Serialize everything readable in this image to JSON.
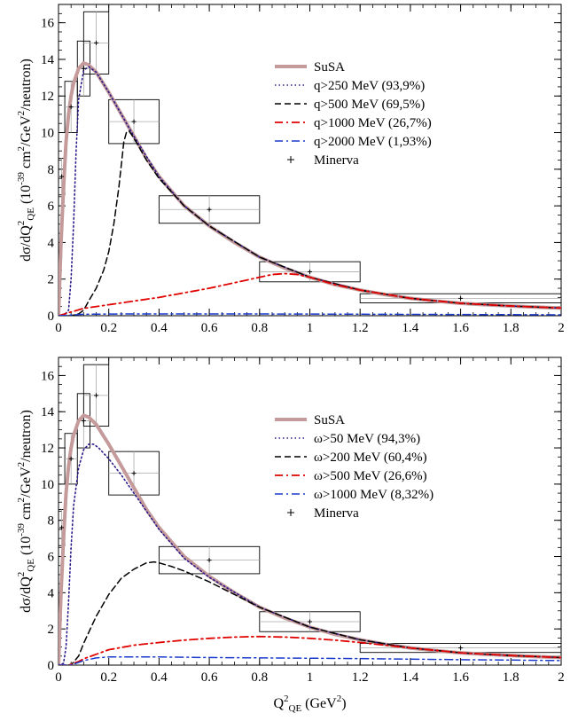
{
  "chart_data": [
    {
      "type": "line",
      "xlabel": "",
      "ylabel": {
        "main": "dσ/dQ",
        "sup2": "2",
        "sub": "QE",
        "paren": " (10",
        "exp": "-39",
        "cm": " cm",
        "cmexp": "2",
        "gev": "/GeV",
        "gevexp": "2",
        "tail": "/neutron)"
      },
      "xlim": [
        0,
        2
      ],
      "ylim": [
        0,
        17
      ],
      "xticks": [
        "0",
        "0.2",
        "0.4",
        "0.6",
        "0.8",
        "1",
        "1.2",
        "1.4",
        "1.6",
        "1.8",
        "2"
      ],
      "yticks": [
        "0",
        "2",
        "4",
        "6",
        "8",
        "10",
        "12",
        "14",
        "16"
      ],
      "legend_position": "top-right",
      "series": [
        {
          "name": "SuSA",
          "style": "thick",
          "color": "#c49a9a",
          "x": [
            0,
            0.01,
            0.02,
            0.03,
            0.04,
            0.05,
            0.06,
            0.08,
            0.1,
            0.12,
            0.15,
            0.2,
            0.25,
            0.3,
            0.35,
            0.4,
            0.5,
            0.6,
            0.7,
            0.8,
            0.9,
            1.0,
            1.1,
            1.2,
            1.3,
            1.4,
            1.5,
            1.6,
            1.7,
            1.8,
            1.9,
            2.0
          ],
          "y": [
            0,
            4.0,
            7.0,
            9.5,
            11.0,
            12.0,
            12.7,
            13.5,
            13.8,
            13.7,
            13.3,
            12.2,
            11.0,
            9.8,
            8.6,
            7.6,
            6.0,
            4.9,
            4.0,
            3.2,
            2.6,
            2.1,
            1.7,
            1.4,
            1.15,
            0.95,
            0.8,
            0.68,
            0.6,
            0.53,
            0.47,
            0.42
          ]
        },
        {
          "name": "q>250 MeV (93,9%)",
          "style": "dotted",
          "color": "#2a1a8a",
          "x": [
            0,
            0.02,
            0.04,
            0.05,
            0.06,
            0.07,
            0.08,
            0.1,
            0.12,
            0.15,
            0.2,
            0.25,
            0.3,
            0.4,
            0.5,
            0.6,
            0.8,
            1.0,
            1.2,
            1.4,
            1.6,
            1.8,
            2.0
          ],
          "y": [
            0,
            0,
            0.3,
            2.0,
            5.0,
            9.0,
            11.8,
            13.4,
            13.6,
            13.3,
            12.2,
            11.0,
            9.8,
            7.6,
            6.0,
            4.9,
            3.2,
            2.1,
            1.4,
            0.95,
            0.68,
            0.53,
            0.42
          ]
        },
        {
          "name": "q>500 MeV (69,5%)",
          "style": "dashed",
          "color": "#000000",
          "x": [
            0,
            0.05,
            0.08,
            0.1,
            0.12,
            0.15,
            0.18,
            0.2,
            0.22,
            0.24,
            0.26,
            0.27,
            0.28,
            0.3,
            0.35,
            0.4,
            0.5,
            0.6,
            0.8,
            1.0,
            1.2,
            1.4,
            1.6,
            1.8,
            2.0
          ],
          "y": [
            0,
            0,
            0.1,
            0.3,
            0.8,
            1.5,
            2.5,
            3.5,
            5.0,
            7.0,
            9.5,
            10.0,
            10.1,
            9.7,
            8.5,
            7.5,
            6.0,
            4.9,
            3.2,
            2.1,
            1.4,
            0.95,
            0.68,
            0.53,
            0.42
          ]
        },
        {
          "name": "q>1000 MeV (26,7%)",
          "style": "dashdot",
          "color": "#e00000",
          "x": [
            0,
            0.05,
            0.1,
            0.2,
            0.3,
            0.4,
            0.5,
            0.6,
            0.7,
            0.8,
            0.85,
            0.9,
            0.95,
            1.0,
            1.1,
            1.2,
            1.4,
            1.6,
            1.8,
            2.0
          ],
          "y": [
            0,
            0.2,
            0.4,
            0.6,
            0.8,
            1.0,
            1.25,
            1.5,
            1.8,
            2.1,
            2.25,
            2.3,
            2.25,
            2.1,
            1.7,
            1.4,
            0.95,
            0.68,
            0.53,
            0.42
          ]
        },
        {
          "name": "q>2000 MeV (1,93%)",
          "style": "dashdotblue",
          "color": "#1a3acc",
          "x": [
            0,
            0.1,
            0.3,
            0.6,
            1.0,
            1.5,
            2.0
          ],
          "y": [
            0,
            0.08,
            0.1,
            0.1,
            0.09,
            0.07,
            0.05
          ]
        },
        {
          "name": "Minerva",
          "style": "points",
          "color": "#000000",
          "points": [
            {
              "x": 0.0125,
              "y": 7.6,
              "xerr": 0.0125,
              "yerr": 1.0,
              "stat": 0.3
            },
            {
              "x": 0.05,
              "y": 11.4,
              "xerr": 0.025,
              "yerr": 1.4,
              "stat": 0.3
            },
            {
              "x": 0.1,
              "y": 13.5,
              "xerr": 0.025,
              "yerr": 1.5,
              "stat": 0.4
            },
            {
              "x": 0.15,
              "y": 14.9,
              "xerr": 0.05,
              "yerr": 1.7,
              "stat": 0.3
            },
            {
              "x": 0.3,
              "y": 10.6,
              "xerr": 0.1,
              "yerr": 1.2,
              "stat": 0.3
            },
            {
              "x": 0.6,
              "y": 5.8,
              "xerr": 0.2,
              "yerr": 0.75,
              "stat": 0.2
            },
            {
              "x": 1.0,
              "y": 2.4,
              "xerr": 0.2,
              "yerr": 0.55,
              "stat": 0.15
            },
            {
              "x": 1.6,
              "y": 0.95,
              "xerr": 0.4,
              "yerr": 0.25,
              "stat": 0.1
            }
          ]
        }
      ]
    },
    {
      "type": "line",
      "xlabel": {
        "main": "Q",
        "sup": "2",
        "sub": "QE",
        "tail": " (GeV",
        "tailexp": "2",
        "close": ")"
      },
      "ylabel": {
        "main": "dσ/dQ",
        "sup2": "2",
        "sub": "QE",
        "paren": " (10",
        "exp": "-39",
        "cm": " cm",
        "cmexp": "2",
        "gev": "/GeV",
        "gevexp": "2",
        "tail": "/neutron)"
      },
      "xlim": [
        0,
        2
      ],
      "ylim": [
        0,
        17
      ],
      "xticks": [
        "0",
        "0.2",
        "0.4",
        "0.6",
        "0.8",
        "1",
        "1.2",
        "1.4",
        "1.6",
        "1.8",
        "2"
      ],
      "yticks": [
        "0",
        "2",
        "4",
        "6",
        "8",
        "10",
        "12",
        "14",
        "16"
      ],
      "legend_position": "top-right",
      "series": [
        {
          "name": "SuSA",
          "style": "thick",
          "color": "#c49a9a",
          "x": [
            0,
            0.01,
            0.02,
            0.03,
            0.04,
            0.05,
            0.06,
            0.08,
            0.1,
            0.12,
            0.15,
            0.2,
            0.25,
            0.3,
            0.35,
            0.4,
            0.5,
            0.6,
            0.7,
            0.8,
            0.9,
            1.0,
            1.1,
            1.2,
            1.3,
            1.4,
            1.5,
            1.6,
            1.7,
            1.8,
            1.9,
            2.0
          ],
          "y": [
            0,
            4.0,
            7.0,
            9.5,
            11.0,
            12.0,
            12.7,
            13.5,
            13.8,
            13.7,
            13.3,
            12.2,
            11.0,
            9.8,
            8.6,
            7.6,
            6.0,
            4.9,
            4.0,
            3.2,
            2.6,
            2.1,
            1.7,
            1.4,
            1.15,
            0.95,
            0.8,
            0.68,
            0.6,
            0.53,
            0.47,
            0.42
          ]
        },
        {
          "name": "ω>50 MeV (94,3%)",
          "style": "dotted",
          "color": "#2a1a8a",
          "x": [
            0,
            0.02,
            0.03,
            0.04,
            0.05,
            0.06,
            0.08,
            0.1,
            0.12,
            0.14,
            0.16,
            0.2,
            0.25,
            0.3,
            0.4,
            0.5,
            0.6,
            0.8,
            1.0,
            1.2,
            1.4,
            1.6,
            1.8,
            2.0
          ],
          "y": [
            0,
            0.1,
            1.0,
            3.5,
            6.5,
            8.8,
            10.9,
            11.9,
            12.2,
            12.2,
            12.0,
            11.4,
            10.5,
            9.5,
            7.5,
            5.9,
            4.85,
            3.2,
            2.1,
            1.4,
            0.95,
            0.68,
            0.53,
            0.42
          ]
        },
        {
          "name": "ω>200 MeV (60,4%)",
          "style": "dashed",
          "color": "#000000",
          "x": [
            0,
            0.05,
            0.08,
            0.1,
            0.15,
            0.2,
            0.25,
            0.3,
            0.35,
            0.38,
            0.4,
            0.45,
            0.5,
            0.6,
            0.7,
            0.8,
            1.0,
            1.2,
            1.4,
            1.6,
            1.8,
            2.0
          ],
          "y": [
            0,
            0,
            0.5,
            1.2,
            2.7,
            3.9,
            4.8,
            5.3,
            5.65,
            5.7,
            5.65,
            5.45,
            5.2,
            4.6,
            3.9,
            3.2,
            2.1,
            1.4,
            0.95,
            0.68,
            0.53,
            0.42
          ]
        },
        {
          "name": "ω>500 MeV (26,6%)",
          "style": "dashdot",
          "color": "#e00000",
          "x": [
            0,
            0.04,
            0.08,
            0.1,
            0.2,
            0.3,
            0.4,
            0.5,
            0.6,
            0.7,
            0.8,
            0.9,
            1.0,
            1.1,
            1.2,
            1.4,
            1.6,
            1.8,
            2.0
          ],
          "y": [
            0,
            0,
            0.2,
            0.35,
            0.85,
            1.1,
            1.25,
            1.38,
            1.48,
            1.55,
            1.58,
            1.55,
            1.48,
            1.38,
            1.25,
            0.95,
            0.68,
            0.53,
            0.42
          ]
        },
        {
          "name": "ω>1000 MeV (8,32%)",
          "style": "dashdotblue",
          "color": "#1a3acc",
          "x": [
            0,
            0.05,
            0.1,
            0.15,
            0.2,
            0.4,
            0.6,
            0.8,
            1.0,
            1.2,
            1.4,
            1.6,
            1.8,
            2.0
          ],
          "y": [
            0,
            0,
            0.25,
            0.4,
            0.45,
            0.45,
            0.42,
            0.4,
            0.38,
            0.36,
            0.33,
            0.3,
            0.28,
            0.25
          ]
        },
        {
          "name": "Minerva",
          "style": "points",
          "color": "#000000",
          "points": [
            {
              "x": 0.0125,
              "y": 7.6,
              "xerr": 0.0125,
              "yerr": 1.0,
              "stat": 0.3
            },
            {
              "x": 0.05,
              "y": 11.4,
              "xerr": 0.025,
              "yerr": 1.4,
              "stat": 0.3
            },
            {
              "x": 0.1,
              "y": 13.5,
              "xerr": 0.025,
              "yerr": 1.5,
              "stat": 0.4
            },
            {
              "x": 0.15,
              "y": 14.9,
              "xerr": 0.05,
              "yerr": 1.7,
              "stat": 0.3
            },
            {
              "x": 0.3,
              "y": 10.6,
              "xerr": 0.1,
              "yerr": 1.2,
              "stat": 0.3
            },
            {
              "x": 0.6,
              "y": 5.8,
              "xerr": 0.2,
              "yerr": 0.75,
              "stat": 0.2
            },
            {
              "x": 1.0,
              "y": 2.4,
              "xerr": 0.2,
              "yerr": 0.55,
              "stat": 0.15
            },
            {
              "x": 1.6,
              "y": 0.95,
              "xerr": 0.4,
              "yerr": 0.25,
              "stat": 0.1
            }
          ]
        }
      ]
    }
  ]
}
